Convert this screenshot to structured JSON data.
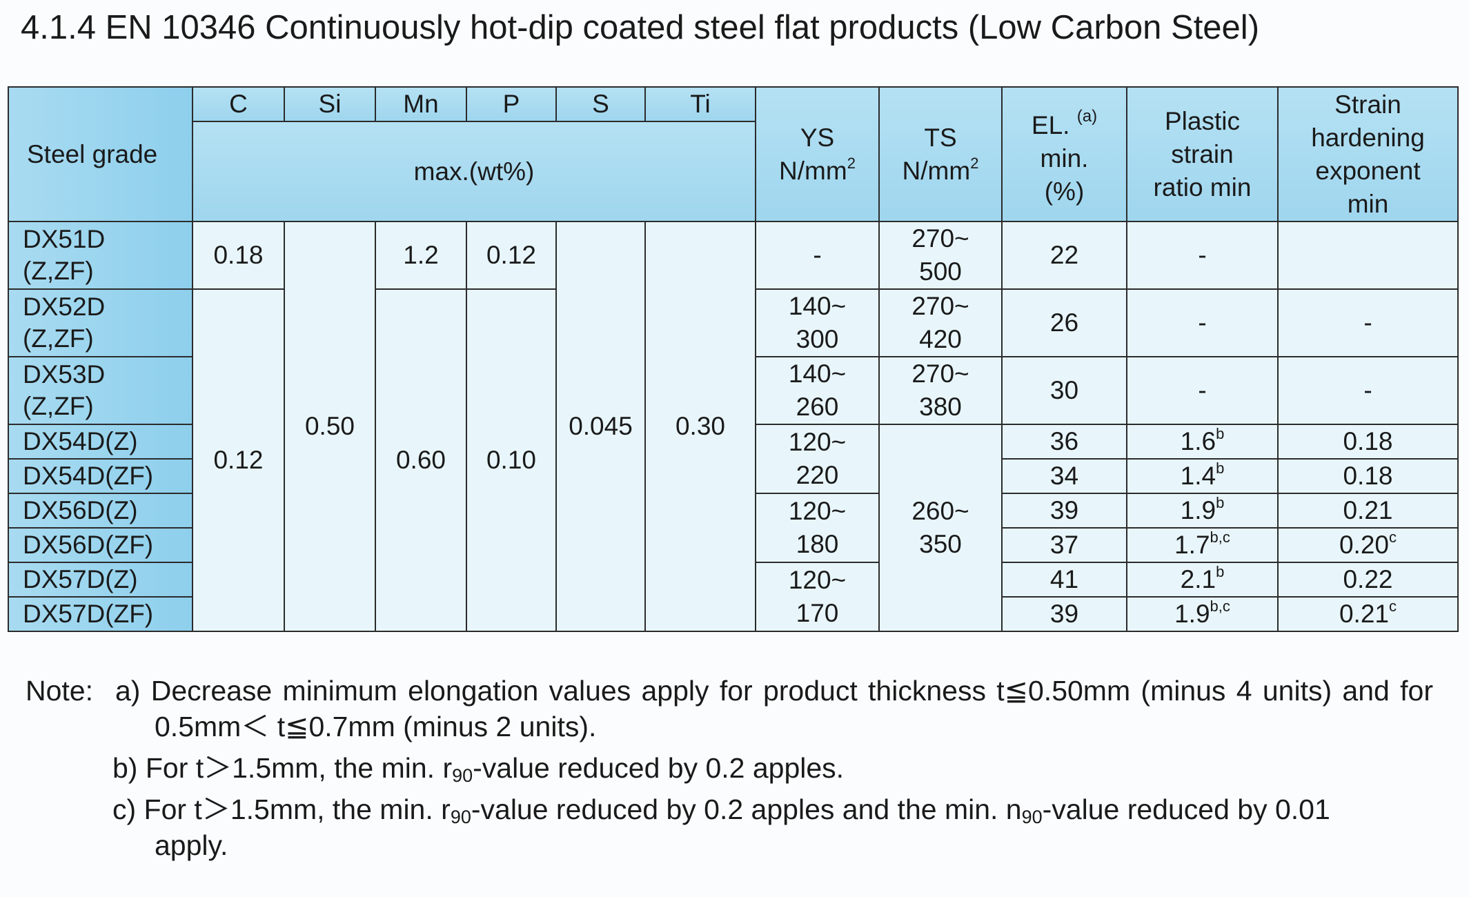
{
  "title": "4.1.4 EN 10346 Continuously hot-dip coated steel flat products (Low Carbon Steel)",
  "table": {
    "header": {
      "steel_grade": "Steel grade",
      "elements": [
        "C",
        "Si",
        "Mn",
        "P",
        "S",
        "Ti"
      ],
      "composition_unit": "max.(wt%)",
      "ys": {
        "label": "YS",
        "unit": "N/mm",
        "sup": "2"
      },
      "ts": {
        "label": "TS",
        "unit": "N/mm",
        "sup": "2"
      },
      "el": {
        "label": "EL.",
        "note": "(a)",
        "min": "min.",
        "unit": "(%)"
      },
      "plastic": "Plastic\nstrain\nratio min",
      "strain": "Strain\nhardening\nexponent\nmin"
    },
    "grades": [
      "DX51D\n(Z,ZF)",
      "DX52D\n(Z,ZF)",
      "DX53D\n(Z,ZF)",
      "DX54D(Z)",
      "DX54D(ZF)",
      "DX56D(Z)",
      "DX56D(ZF)",
      "DX57D(Z)",
      "DX57D(ZF)"
    ],
    "c": [
      "0.18",
      "0.12"
    ],
    "si": "0.50",
    "mn": [
      "1.2",
      "0.60"
    ],
    "p": [
      "0.12",
      "0.10"
    ],
    "s": "0.045",
    "ti": "0.30",
    "ys": [
      "-",
      "140~\n300",
      "140~\n260",
      "120~\n220",
      "120~\n180",
      "120~\n170"
    ],
    "ts": [
      "270~\n500",
      "270~\n420",
      "270~\n380",
      "260~\n350"
    ],
    "el": [
      "22",
      "26",
      "30",
      "36",
      "34",
      "39",
      "37",
      "41",
      "39"
    ],
    "plastic": [
      {
        "value": "-"
      },
      {
        "value": "-"
      },
      {
        "value": "-"
      },
      {
        "value": "1.6",
        "sup": "b"
      },
      {
        "value": "1.4",
        "sup": "b"
      },
      {
        "value": "1.9",
        "sup": "b"
      },
      {
        "value": "1.7",
        "sup": "b,c"
      },
      {
        "value": "2.1",
        "sup": "b"
      },
      {
        "value": "1.9",
        "sup": "b,c"
      }
    ],
    "strain": [
      {
        "value": "-"
      },
      {
        "value": "-"
      },
      {
        "value": "0.18"
      },
      {
        "value": "0.18"
      },
      {
        "value": "0.21"
      },
      {
        "value": "0.20",
        "sup": "c"
      },
      {
        "value": "0.22"
      },
      {
        "value": "0.21",
        "sup": "c"
      }
    ]
  },
  "notes": {
    "lead": "Note:",
    "a": "a) Decrease minimum elongation values apply for product thickness t≦0.50mm (minus 4 units) and for 0.5mm＜ t≦0.7mm (minus 2 units).",
    "b": [
      "b) For t＞1.5mm, the min. r",
      "90",
      "-value reduced by 0.2 apples."
    ],
    "c": [
      "c) For t＞1.5mm, the min. r",
      "90",
      "-value reduced by 0.2 apples and the min. n",
      "90",
      "-value reduced by 0.01 apply."
    ]
  }
}
